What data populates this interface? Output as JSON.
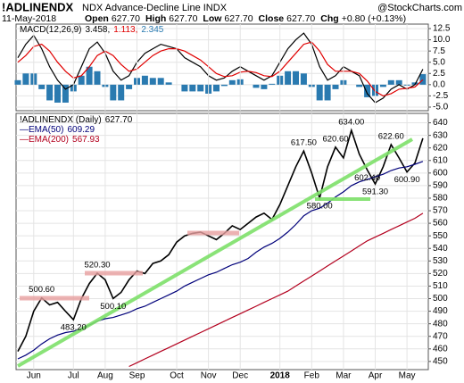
{
  "header": {
    "symbol": "!ADLINENDX",
    "name": "NDX Advance-Decline Line",
    "exchange": "INDX",
    "source": "@StockCharts.com",
    "date": "11-May-2018",
    "fields": [
      {
        "label": "Open",
        "value": "627.70"
      },
      {
        "label": "High",
        "value": "627.70"
      },
      {
        "label": "Low",
        "value": "627.70"
      },
      {
        "label": "Close",
        "value": "627.70"
      },
      {
        "label": "Chg",
        "value": "+0.80 (+0.13%)"
      }
    ]
  },
  "chart_data": [
    {
      "type": "line",
      "legend": "MACD(12,26,9)",
      "ylim": [
        -5.8,
        13.5
      ],
      "yticks": [
        {
          "value": 12.5,
          "label": "12.5"
        },
        {
          "value": 10,
          "label": "10.0"
        },
        {
          "value": 7.5,
          "label": "7.5"
        },
        {
          "value": 5,
          "label": "5.0"
        },
        {
          "value": 2.5,
          "label": "2.5"
        },
        {
          "value": 0,
          "label": "0.0"
        },
        {
          "value": -2.5,
          "label": "-2.5"
        },
        {
          "value": -5,
          "label": "-5.0"
        }
      ],
      "grid": true,
      "series": [
        {
          "kind": "bar",
          "legend_value": "2.345",
          "color": "#2a7ab0",
          "values": [
            1,
            2.5,
            2.5,
            -1,
            -3.5,
            -4,
            -4,
            -1.5,
            2,
            4,
            3,
            -0.5,
            -3.5,
            -3.5,
            -1,
            1.5,
            2,
            1.5,
            1.5,
            0.5,
            0,
            -1.5,
            -1.5,
            -1.5,
            -2,
            -1.5,
            -0.3,
            1,
            1.2,
            0,
            -0.7,
            -1,
            0.2,
            2,
            3,
            3,
            2.5,
            -0.5,
            -3.5,
            -3.5,
            -1,
            1,
            0,
            -0.5,
            -2.8,
            -2.5,
            -0.5,
            1,
            1,
            -0.2,
            0.5,
            2.345
          ]
        },
        {
          "kind": "line",
          "legend_value": "3.458,",
          "color": "#000000",
          "values": [
            6,
            9,
            11,
            8,
            4,
            1,
            -1,
            0,
            4,
            8,
            9.5,
            7,
            3,
            1,
            2,
            5,
            7,
            8,
            9,
            8.5,
            8,
            6,
            5,
            4,
            2,
            1,
            1.5,
            3,
            4,
            3,
            2,
            1,
            2,
            5,
            8,
            10,
            11.5,
            9,
            4,
            1,
            2,
            4,
            3,
            2,
            -2,
            -4,
            -3,
            -1,
            0,
            -1,
            0,
            3.458
          ]
        },
        {
          "kind": "line",
          "legend_value": "1.113,",
          "color": "#e00000",
          "values": [
            5,
            6.5,
            8.5,
            9,
            7.5,
            5,
            3,
            1.5,
            2,
            4,
            6.5,
            7.5,
            6.5,
            4.5,
            3,
            3.5,
            5,
            6.5,
            7.5,
            8,
            8,
            7.5,
            6.5,
            5.5,
            4,
            2.5,
            1.8,
            2,
            2.8,
            3,
            2.7,
            2,
            1.8,
            3,
            5,
            7,
            9,
            9.5,
            7.5,
            4.5,
            3,
            3,
            3,
            2.5,
            0.8,
            -1.5,
            -2.5,
            -2,
            -1,
            -0.8,
            -0.5,
            1.113
          ]
        }
      ]
    },
    {
      "type": "line",
      "categories": [
        null,
        null,
        "Jun",
        null,
        null,
        null,
        null,
        "Jul",
        null,
        null,
        null,
        "Aug",
        null,
        null,
        null,
        "Sep",
        null,
        null,
        null,
        null,
        "Oct",
        null,
        null,
        null,
        "Nov",
        null,
        null,
        null,
        "Dec",
        null,
        null,
        null,
        null,
        "2018",
        null,
        null,
        null,
        "Feb",
        null,
        null,
        null,
        "Mar",
        null,
        null,
        null,
        "Apr",
        null,
        null,
        null,
        "May",
        null,
        null
      ],
      "ylim": [
        443.5,
        647.5
      ],
      "yticks": [
        450,
        460,
        470,
        480,
        490,
        500,
        510,
        520,
        530,
        540,
        550,
        560,
        570,
        580,
        590,
        600,
        610,
        620,
        630,
        640
      ],
      "grid": true,
      "series": [
        {
          "name": "!ADLINENDX (Daily)",
          "legend_value": "627.70",
          "color": "#000000",
          "values": [
            458,
            470,
            490,
            500.6,
            495,
            497,
            490,
            483.2,
            500,
            512,
            520.3,
            515,
            500.1,
            505,
            515,
            522,
            520,
            528,
            530,
            535,
            545,
            550,
            552,
            553,
            550,
            547,
            552,
            558,
            555,
            560,
            565,
            568,
            563,
            575,
            590,
            605,
            617.5,
            600,
            580,
            605,
            620.6,
            612,
            634,
            615,
            602.4,
            591.3,
            605,
            622.6,
            612,
            600.9,
            608,
            627.7
          ],
          "value_labels": [
            null,
            null,
            null,
            "500.60",
            null,
            null,
            null,
            "483.20",
            null,
            null,
            "520.30",
            null,
            "500.10",
            null,
            null,
            null,
            null,
            null,
            null,
            null,
            null,
            null,
            null,
            null,
            null,
            null,
            null,
            null,
            null,
            null,
            null,
            null,
            null,
            null,
            null,
            null,
            "617.50",
            null,
            "580.00",
            null,
            "620.60",
            null,
            "634.00",
            null,
            "602.40",
            "591.30",
            null,
            "622.60",
            null,
            "600.90",
            null,
            null
          ]
        },
        {
          "name": "EMA(50)",
          "legend_value": "609.29",
          "color": "#00007a",
          "values": [
            452,
            455,
            459,
            464,
            468,
            471,
            473,
            474,
            476,
            479,
            482,
            484,
            485,
            487,
            489,
            492,
            494,
            497,
            500,
            503,
            506,
            510,
            513,
            516,
            519,
            521,
            524,
            527,
            529,
            532,
            537,
            541,
            544,
            548,
            553,
            559,
            566,
            570,
            572,
            576,
            581,
            585,
            590,
            593,
            595,
            597,
            599,
            602,
            604,
            605,
            607,
            609.29
          ]
        },
        {
          "name": "EMA(200)",
          "legend_value": "567.93",
          "color": "#b3001e",
          "values": [
            null,
            null,
            null,
            null,
            null,
            null,
            null,
            null,
            null,
            null,
            null,
            null,
            null,
            null,
            446,
            449,
            452,
            455,
            458,
            461,
            464,
            467,
            470,
            473,
            476,
            479,
            482,
            485,
            488,
            491,
            494,
            497,
            500,
            503,
            506,
            510,
            514,
            518,
            522,
            526,
            530,
            534,
            538,
            542,
            546,
            549,
            552,
            555,
            558,
            561,
            564,
            567.93
          ]
        }
      ]
    }
  ]
}
